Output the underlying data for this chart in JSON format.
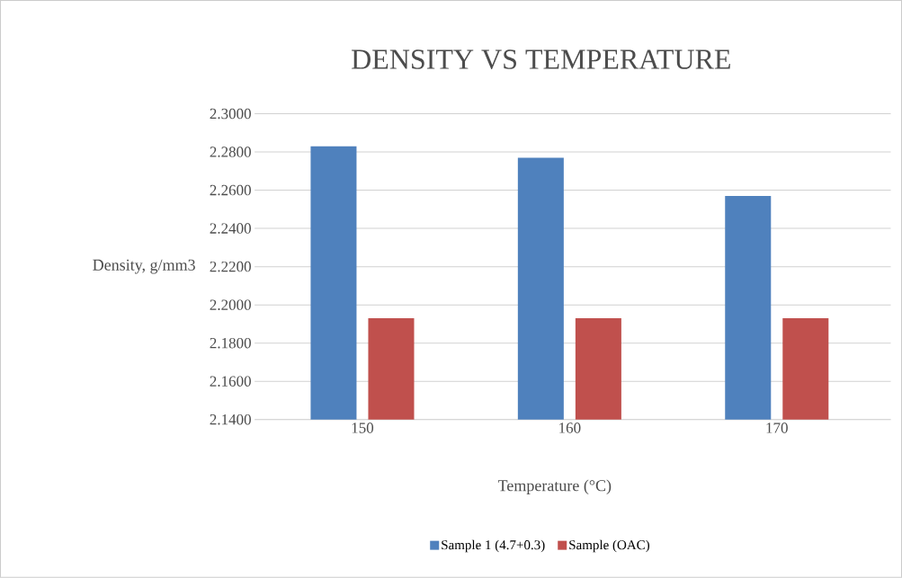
{
  "chart_data": {
    "type": "bar",
    "title": "DENSITY VS TEMPERATURE",
    "xlabel": "Temperature (°C)",
    "ylabel": "Density, g/mm3",
    "categories": [
      "150",
      "160",
      "170"
    ],
    "series": [
      {
        "name": "Sample 1 (4.7+0.3)",
        "color": "#4f81bd",
        "values": [
          2.283,
          2.277,
          2.257
        ]
      },
      {
        "name": "Sample (OAC)",
        "color": "#c0504d",
        "values": [
          2.193,
          2.193,
          2.193
        ]
      }
    ],
    "ylim": [
      2.14,
      2.3
    ],
    "yticks": [
      {
        "value": 2.14,
        "label": "2.1400"
      },
      {
        "value": 2.16,
        "label": "2.1600"
      },
      {
        "value": 2.18,
        "label": "2.1800"
      },
      {
        "value": 2.2,
        "label": "2.2000"
      },
      {
        "value": 2.22,
        "label": "2.2200"
      },
      {
        "value": 2.24,
        "label": "2.2400"
      },
      {
        "value": 2.26,
        "label": "2.2600"
      },
      {
        "value": 2.28,
        "label": "2.2800"
      },
      {
        "value": 2.3,
        "label": "2.3000"
      }
    ],
    "grid": "y",
    "legend": "bottom"
  }
}
